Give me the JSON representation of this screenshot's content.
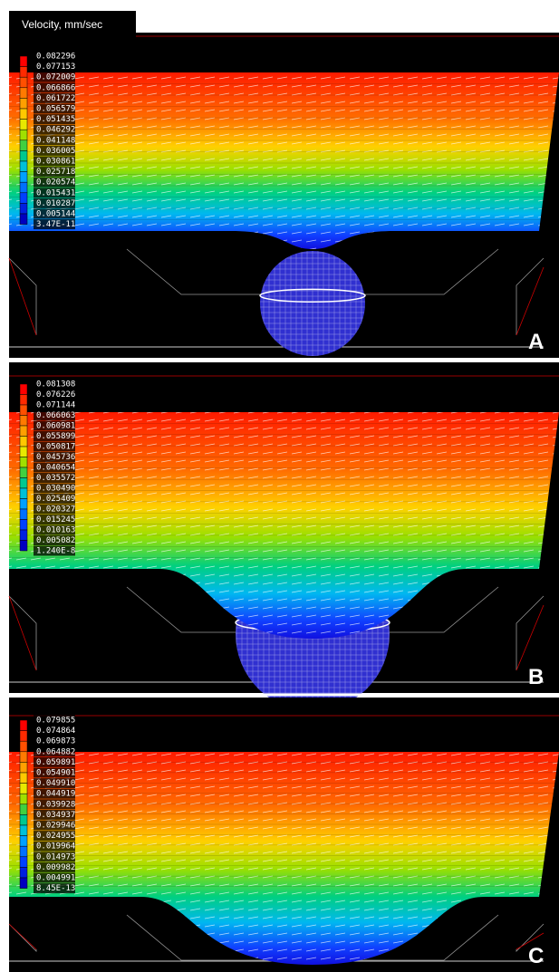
{
  "title": "Velocity, mm/sec",
  "panels": [
    {
      "label": "A",
      "legend": [
        "0.082296",
        "0.077153",
        "0.072009",
        "0.066866",
        "0.061722",
        "0.056579",
        "0.051435",
        "0.046292",
        "0.041148",
        "0.036005",
        "0.030861",
        "0.025718",
        "0.020574",
        "0.015431",
        "0.010287",
        "0.005144",
        "3.47E-11"
      ]
    },
    {
      "label": "B",
      "legend": [
        "0.081308",
        "0.076226",
        "0.071144",
        "0.066063",
        "0.060981",
        "0.055899",
        "0.050817",
        "0.045736",
        "0.040654",
        "0.035572",
        "0.030490",
        "0.025409",
        "0.020327",
        "0.015245",
        "0.010163",
        "0.005082",
        "1.240E-8"
      ]
    },
    {
      "label": "C",
      "legend": [
        "0.079855",
        "0.074864",
        "0.069873",
        "0.064882",
        "0.059891",
        "0.054901",
        "0.049910",
        "0.044919",
        "0.039928",
        "0.034937",
        "0.029946",
        "0.024955",
        "0.019964",
        "0.014973",
        "0.009982",
        "0.004991",
        "8.45E-13"
      ]
    }
  ]
}
